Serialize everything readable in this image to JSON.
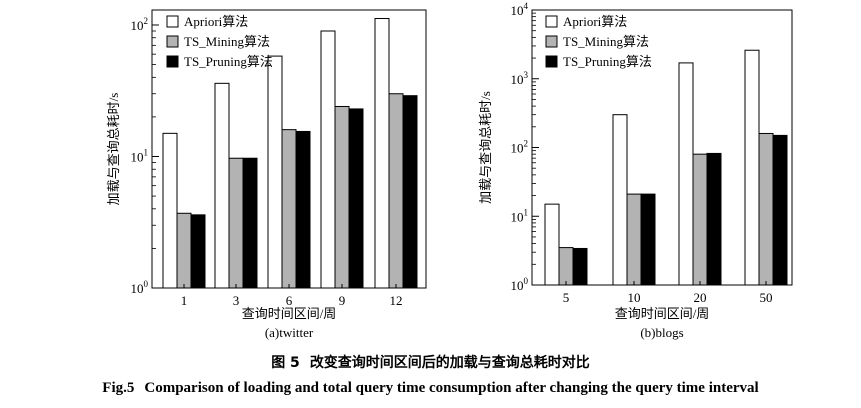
{
  "chart_data": [
    {
      "type": "bar",
      "scale": "log",
      "ylim": [
        1,
        130
      ],
      "yticks": [
        {
          "base": "10",
          "exp": "0",
          "value": 1
        },
        {
          "base": "10",
          "exp": "1",
          "value": 10
        },
        {
          "base": "10",
          "exp": "2",
          "value": 100
        }
      ],
      "xlabel": "查询时间区间/周",
      "ylabel": "加载与查询总耗时/s",
      "subcaption": "(a)twitter",
      "categories": [
        "1",
        "3",
        "6",
        "9",
        "12"
      ],
      "series": [
        {
          "name": "Apriori算法",
          "color": "#ffffff",
          "values": [
            15,
            36,
            58,
            90,
            112
          ]
        },
        {
          "name": "TS_Mining算法",
          "color": "#b3b3b3",
          "values": [
            3.7,
            9.7,
            16,
            24,
            30
          ]
        },
        {
          "name": "TS_Pruning算法",
          "color": "#000000",
          "values": [
            3.6,
            9.7,
            15.5,
            23,
            29
          ]
        }
      ],
      "legend": "top-left"
    },
    {
      "type": "bar",
      "scale": "log",
      "ylim": [
        1,
        10000
      ],
      "yticks": [
        {
          "base": "10",
          "exp": "0",
          "value": 1
        },
        {
          "base": "10",
          "exp": "1",
          "value": 10
        },
        {
          "base": "10",
          "exp": "2",
          "value": 100
        },
        {
          "base": "10",
          "exp": "3",
          "value": 1000
        },
        {
          "base": "10",
          "exp": "4",
          "value": 10000
        }
      ],
      "xlabel": "查询时间区间/周",
      "ylabel": "加载与查询总耗时/s",
      "subcaption": "(b)blogs",
      "categories": [
        "5",
        "10",
        "20",
        "50"
      ],
      "series": [
        {
          "name": "Apriori算法",
          "color": "#ffffff",
          "values": [
            15,
            300,
            1700,
            2600
          ]
        },
        {
          "name": "TS_Mining算法",
          "color": "#b3b3b3",
          "values": [
            3.5,
            21,
            80,
            160
          ]
        },
        {
          "name": "TS_Pruning算法",
          "color": "#000000",
          "values": [
            3.4,
            21,
            82,
            150
          ]
        }
      ],
      "legend": "top-left"
    }
  ],
  "caption_cn": {
    "label": "图 5",
    "text": "改变查询时间区间后的加载与查询总耗时对比"
  },
  "caption_en": {
    "label": "Fig.5",
    "text": "Comparison of loading and total query time consumption after changing the query time interval"
  }
}
